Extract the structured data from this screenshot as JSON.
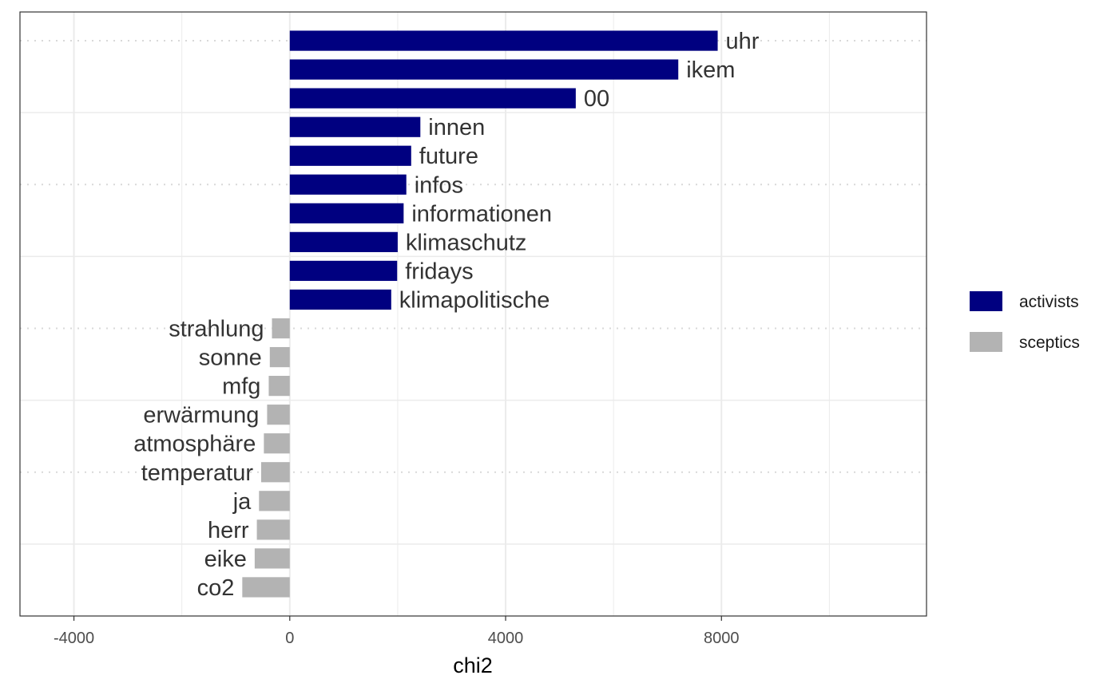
{
  "chart_data": {
    "type": "bar",
    "orientation": "horizontal",
    "xlabel": "chi2",
    "ylabel": "",
    "xlim": [
      -5000,
      11800
    ],
    "x_ticks": [
      -4000,
      0,
      4000,
      8000
    ],
    "x_tick_labels": [
      "-4000",
      "0",
      "4000",
      "8000"
    ],
    "grid": true,
    "legend_position": "right",
    "series_colors": {
      "activists": "#000080",
      "sceptics": "#b3b3b3"
    },
    "legend": [
      {
        "name": "activists",
        "color": "#000080"
      },
      {
        "name": "sceptics",
        "color": "#b3b3b3"
      }
    ],
    "bars": [
      {
        "label": "uhr",
        "value": 7930,
        "group": "activists"
      },
      {
        "label": "ikem",
        "value": 7200,
        "group": "activists"
      },
      {
        "label": "00",
        "value": 5300,
        "group": "activists"
      },
      {
        "label": "innen",
        "value": 2420,
        "group": "activists"
      },
      {
        "label": "future",
        "value": 2250,
        "group": "activists"
      },
      {
        "label": "infos",
        "value": 2160,
        "group": "activists"
      },
      {
        "label": "informationen",
        "value": 2110,
        "group": "activists"
      },
      {
        "label": "klimaschutz",
        "value": 2000,
        "group": "activists"
      },
      {
        "label": "fridays",
        "value": 1990,
        "group": "activists"
      },
      {
        "label": "klimapolitische",
        "value": 1880,
        "group": "activists"
      },
      {
        "label": "strahlung",
        "value": -330,
        "group": "sceptics"
      },
      {
        "label": "sonne",
        "value": -370,
        "group": "sceptics"
      },
      {
        "label": "mfg",
        "value": -390,
        "group": "sceptics"
      },
      {
        "label": "erwärmung",
        "value": -420,
        "group": "sceptics"
      },
      {
        "label": "atmosphäre",
        "value": -480,
        "group": "sceptics"
      },
      {
        "label": "temperatur",
        "value": -530,
        "group": "sceptics"
      },
      {
        "label": "ja",
        "value": -570,
        "group": "sceptics"
      },
      {
        "label": "herr",
        "value": -610,
        "group": "sceptics"
      },
      {
        "label": "eike",
        "value": -650,
        "group": "sceptics"
      },
      {
        "label": "co2",
        "value": -880,
        "group": "sceptics"
      }
    ]
  }
}
